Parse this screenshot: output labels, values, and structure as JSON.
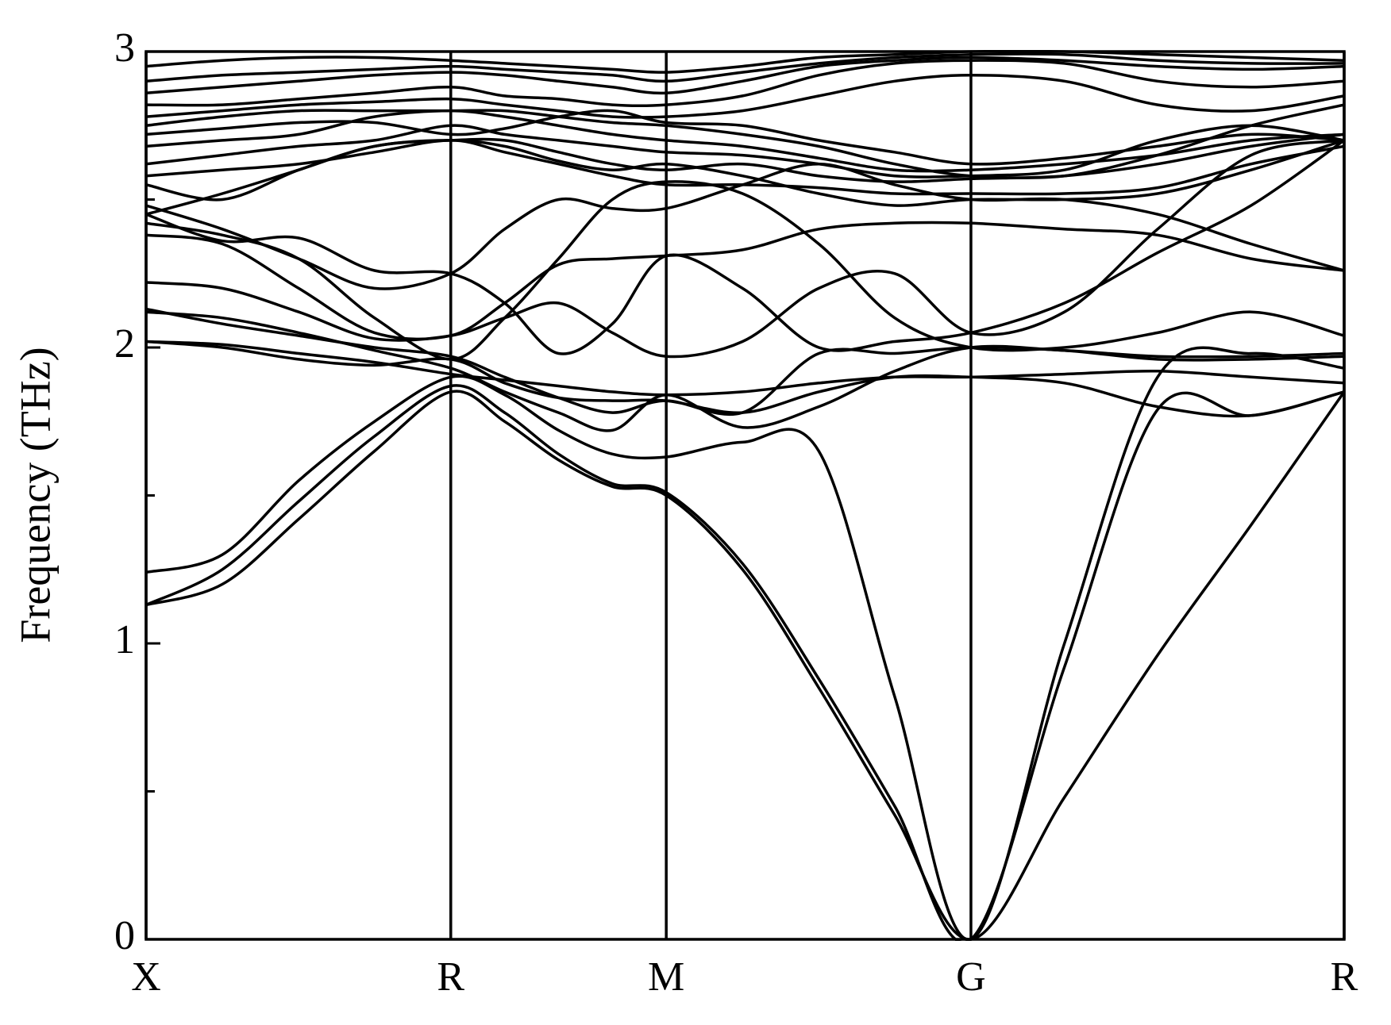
{
  "chart_data": {
    "type": "line",
    "y_label": "Frequency (THz)",
    "color": "#000000",
    "xlim": [
      0,
      2.78
    ],
    "xticks": [
      {
        "value": 0,
        "label": "X"
      },
      {
        "value": 0.707,
        "label": "R"
      },
      {
        "value": 1.207,
        "label": "M"
      },
      {
        "value": 1.914,
        "label": "G"
      },
      {
        "value": 2.78,
        "label": "R"
      }
    ],
    "ylim": [
      0,
      3
    ],
    "yticks": [
      0,
      1,
      2,
      3
    ],
    "yminorticks": [
      0.5,
      1.5,
      2.5
    ],
    "x": [
      0,
      0.177,
      0.354,
      0.53,
      0.707,
      0.832,
      0.957,
      1.082,
      1.207,
      1.384,
      1.561,
      1.737,
      1.914,
      2.131,
      2.347,
      2.564,
      2.78
    ],
    "series": [
      {
        "values": [
          1.13,
          1.2,
          1.42,
          1.65,
          1.85,
          1.75,
          1.62,
          1.53,
          1.5,
          1.25,
          0.85,
          0.42,
          0,
          0.48,
          0.96,
          1.4,
          1.85
        ]
      },
      {
        "values": [
          1.13,
          1.25,
          1.48,
          1.7,
          1.87,
          1.78,
          1.64,
          1.54,
          1.51,
          1.27,
          0.88,
          0.45,
          0,
          0.92,
          1.79,
          1.77,
          1.85
        ]
      },
      {
        "values": [
          1.24,
          1.3,
          1.55,
          1.75,
          1.9,
          1.84,
          1.72,
          1.64,
          1.63,
          1.68,
          1.65,
          0.82,
          0,
          1.0,
          1.9,
          1.98,
          1.93
        ]
      },
      {
        "values": [
          2.02,
          2.01,
          1.98,
          1.95,
          1.91,
          1.89,
          1.87,
          1.85,
          1.84,
          1.85,
          1.88,
          1.9,
          1.9,
          1.91,
          1.92,
          1.9,
          1.88
        ]
      },
      {
        "values": [
          2.02,
          2.0,
          1.96,
          1.94,
          1.96,
          1.88,
          1.83,
          1.82,
          1.82,
          1.78,
          1.85,
          1.9,
          1.9,
          1.88,
          1.8,
          1.77,
          1.85
        ]
      },
      {
        "values": [
          2.12,
          2.1,
          2.05,
          1.99,
          1.93,
          1.85,
          1.78,
          1.72,
          1.84,
          1.73,
          1.8,
          1.92,
          2.0,
          1.99,
          1.97,
          1.97,
          1.98
        ]
      },
      {
        "values": [
          2.13,
          2.08,
          2.04,
          2.0,
          1.97,
          1.9,
          1.83,
          1.78,
          1.82,
          1.78,
          1.98,
          1.98,
          2.0,
          1.99,
          1.96,
          1.96,
          1.97
        ]
      },
      {
        "values": [
          2.22,
          2.2,
          2.12,
          2.03,
          2.04,
          2.1,
          2.15,
          2.05,
          1.97,
          2.02,
          2.2,
          2.25,
          2.05,
          2.12,
          2.4,
          2.65,
          2.7
        ]
      },
      {
        "values": [
          2.38,
          2.35,
          2.2,
          2.05,
          2.04,
          2.15,
          2.28,
          2.3,
          2.31,
          2.33,
          2.4,
          2.42,
          2.42,
          2.4,
          2.38,
          2.3,
          2.26
        ]
      },
      {
        "values": [
          2.42,
          2.38,
          2.3,
          2.1,
          1.96,
          2.1,
          2.3,
          2.5,
          2.56,
          2.52,
          2.35,
          2.1,
          2.0,
          2.0,
          2.05,
          2.12,
          2.04
        ]
      },
      {
        "values": [
          2.45,
          2.36,
          2.37,
          2.26,
          2.25,
          2.15,
          1.98,
          2.08,
          2.31,
          2.2,
          2.0,
          2.02,
          2.05,
          2.15,
          2.32,
          2.48,
          2.7
        ]
      },
      {
        "values": [
          2.48,
          2.4,
          2.3,
          2.2,
          2.25,
          2.4,
          2.5,
          2.47,
          2.47,
          2.55,
          2.62,
          2.55,
          2.5,
          2.5,
          2.45,
          2.35,
          2.26
        ]
      },
      {
        "values": [
          2.55,
          2.5,
          2.6,
          2.68,
          2.7,
          2.68,
          2.63,
          2.6,
          2.62,
          2.58,
          2.52,
          2.48,
          2.5,
          2.5,
          2.52,
          2.6,
          2.7
        ]
      },
      {
        "values": [
          2.45,
          2.52,
          2.6,
          2.68,
          2.7,
          2.7,
          2.66,
          2.62,
          2.6,
          2.62,
          2.58,
          2.56,
          2.57,
          2.58,
          2.62,
          2.68,
          2.72
        ]
      },
      {
        "values": [
          2.62,
          2.65,
          2.68,
          2.7,
          2.75,
          2.72,
          2.7,
          2.68,
          2.66,
          2.65,
          2.62,
          2.58,
          2.58,
          2.6,
          2.7,
          2.75,
          2.7
        ]
      },
      {
        "values": [
          2.68,
          2.7,
          2.72,
          2.78,
          2.8,
          2.78,
          2.75,
          2.72,
          2.7,
          2.68,
          2.64,
          2.6,
          2.6,
          2.62,
          2.65,
          2.7,
          2.72
        ]
      },
      {
        "values": [
          2.75,
          2.78,
          2.8,
          2.8,
          2.8,
          2.8,
          2.78,
          2.76,
          2.75,
          2.72,
          2.68,
          2.62,
          2.58,
          2.58,
          2.65,
          2.75,
          2.82
        ]
      },
      {
        "values": [
          2.78,
          2.8,
          2.82,
          2.83,
          2.84,
          2.82,
          2.8,
          2.78,
          2.78,
          2.8,
          2.85,
          2.9,
          2.92,
          2.9,
          2.82,
          2.8,
          2.85
        ]
      },
      {
        "values": [
          2.82,
          2.82,
          2.84,
          2.86,
          2.88,
          2.85,
          2.84,
          2.82,
          2.82,
          2.85,
          2.92,
          2.96,
          2.97,
          2.96,
          2.9,
          2.88,
          2.9
        ]
      },
      {
        "values": [
          2.86,
          2.88,
          2.9,
          2.92,
          2.93,
          2.92,
          2.9,
          2.88,
          2.86,
          2.9,
          2.95,
          2.97,
          2.98,
          2.97,
          2.95,
          2.94,
          2.95
        ]
      },
      {
        "values": [
          2.9,
          2.92,
          2.93,
          2.94,
          2.95,
          2.94,
          2.93,
          2.92,
          2.9,
          2.93,
          2.96,
          2.98,
          2.99,
          2.99,
          2.97,
          2.96,
          2.96
        ]
      },
      {
        "values": [
          2.95,
          2.97,
          2.98,
          2.98,
          2.97,
          2.96,
          2.95,
          2.94,
          2.93,
          2.95,
          2.98,
          2.99,
          3.0,
          3.0,
          2.99,
          2.98,
          2.97
        ]
      },
      {
        "values": [
          2.72,
          2.74,
          2.76,
          2.76,
          2.72,
          2.74,
          2.78,
          2.8,
          2.76,
          2.75,
          2.7,
          2.66,
          2.62,
          2.64,
          2.68,
          2.72,
          2.7
        ]
      },
      {
        "values": [
          2.58,
          2.6,
          2.62,
          2.66,
          2.7,
          2.66,
          2.62,
          2.58,
          2.55,
          2.55,
          2.54,
          2.52,
          2.52,
          2.52,
          2.54,
          2.62,
          2.68
        ]
      }
    ]
  }
}
